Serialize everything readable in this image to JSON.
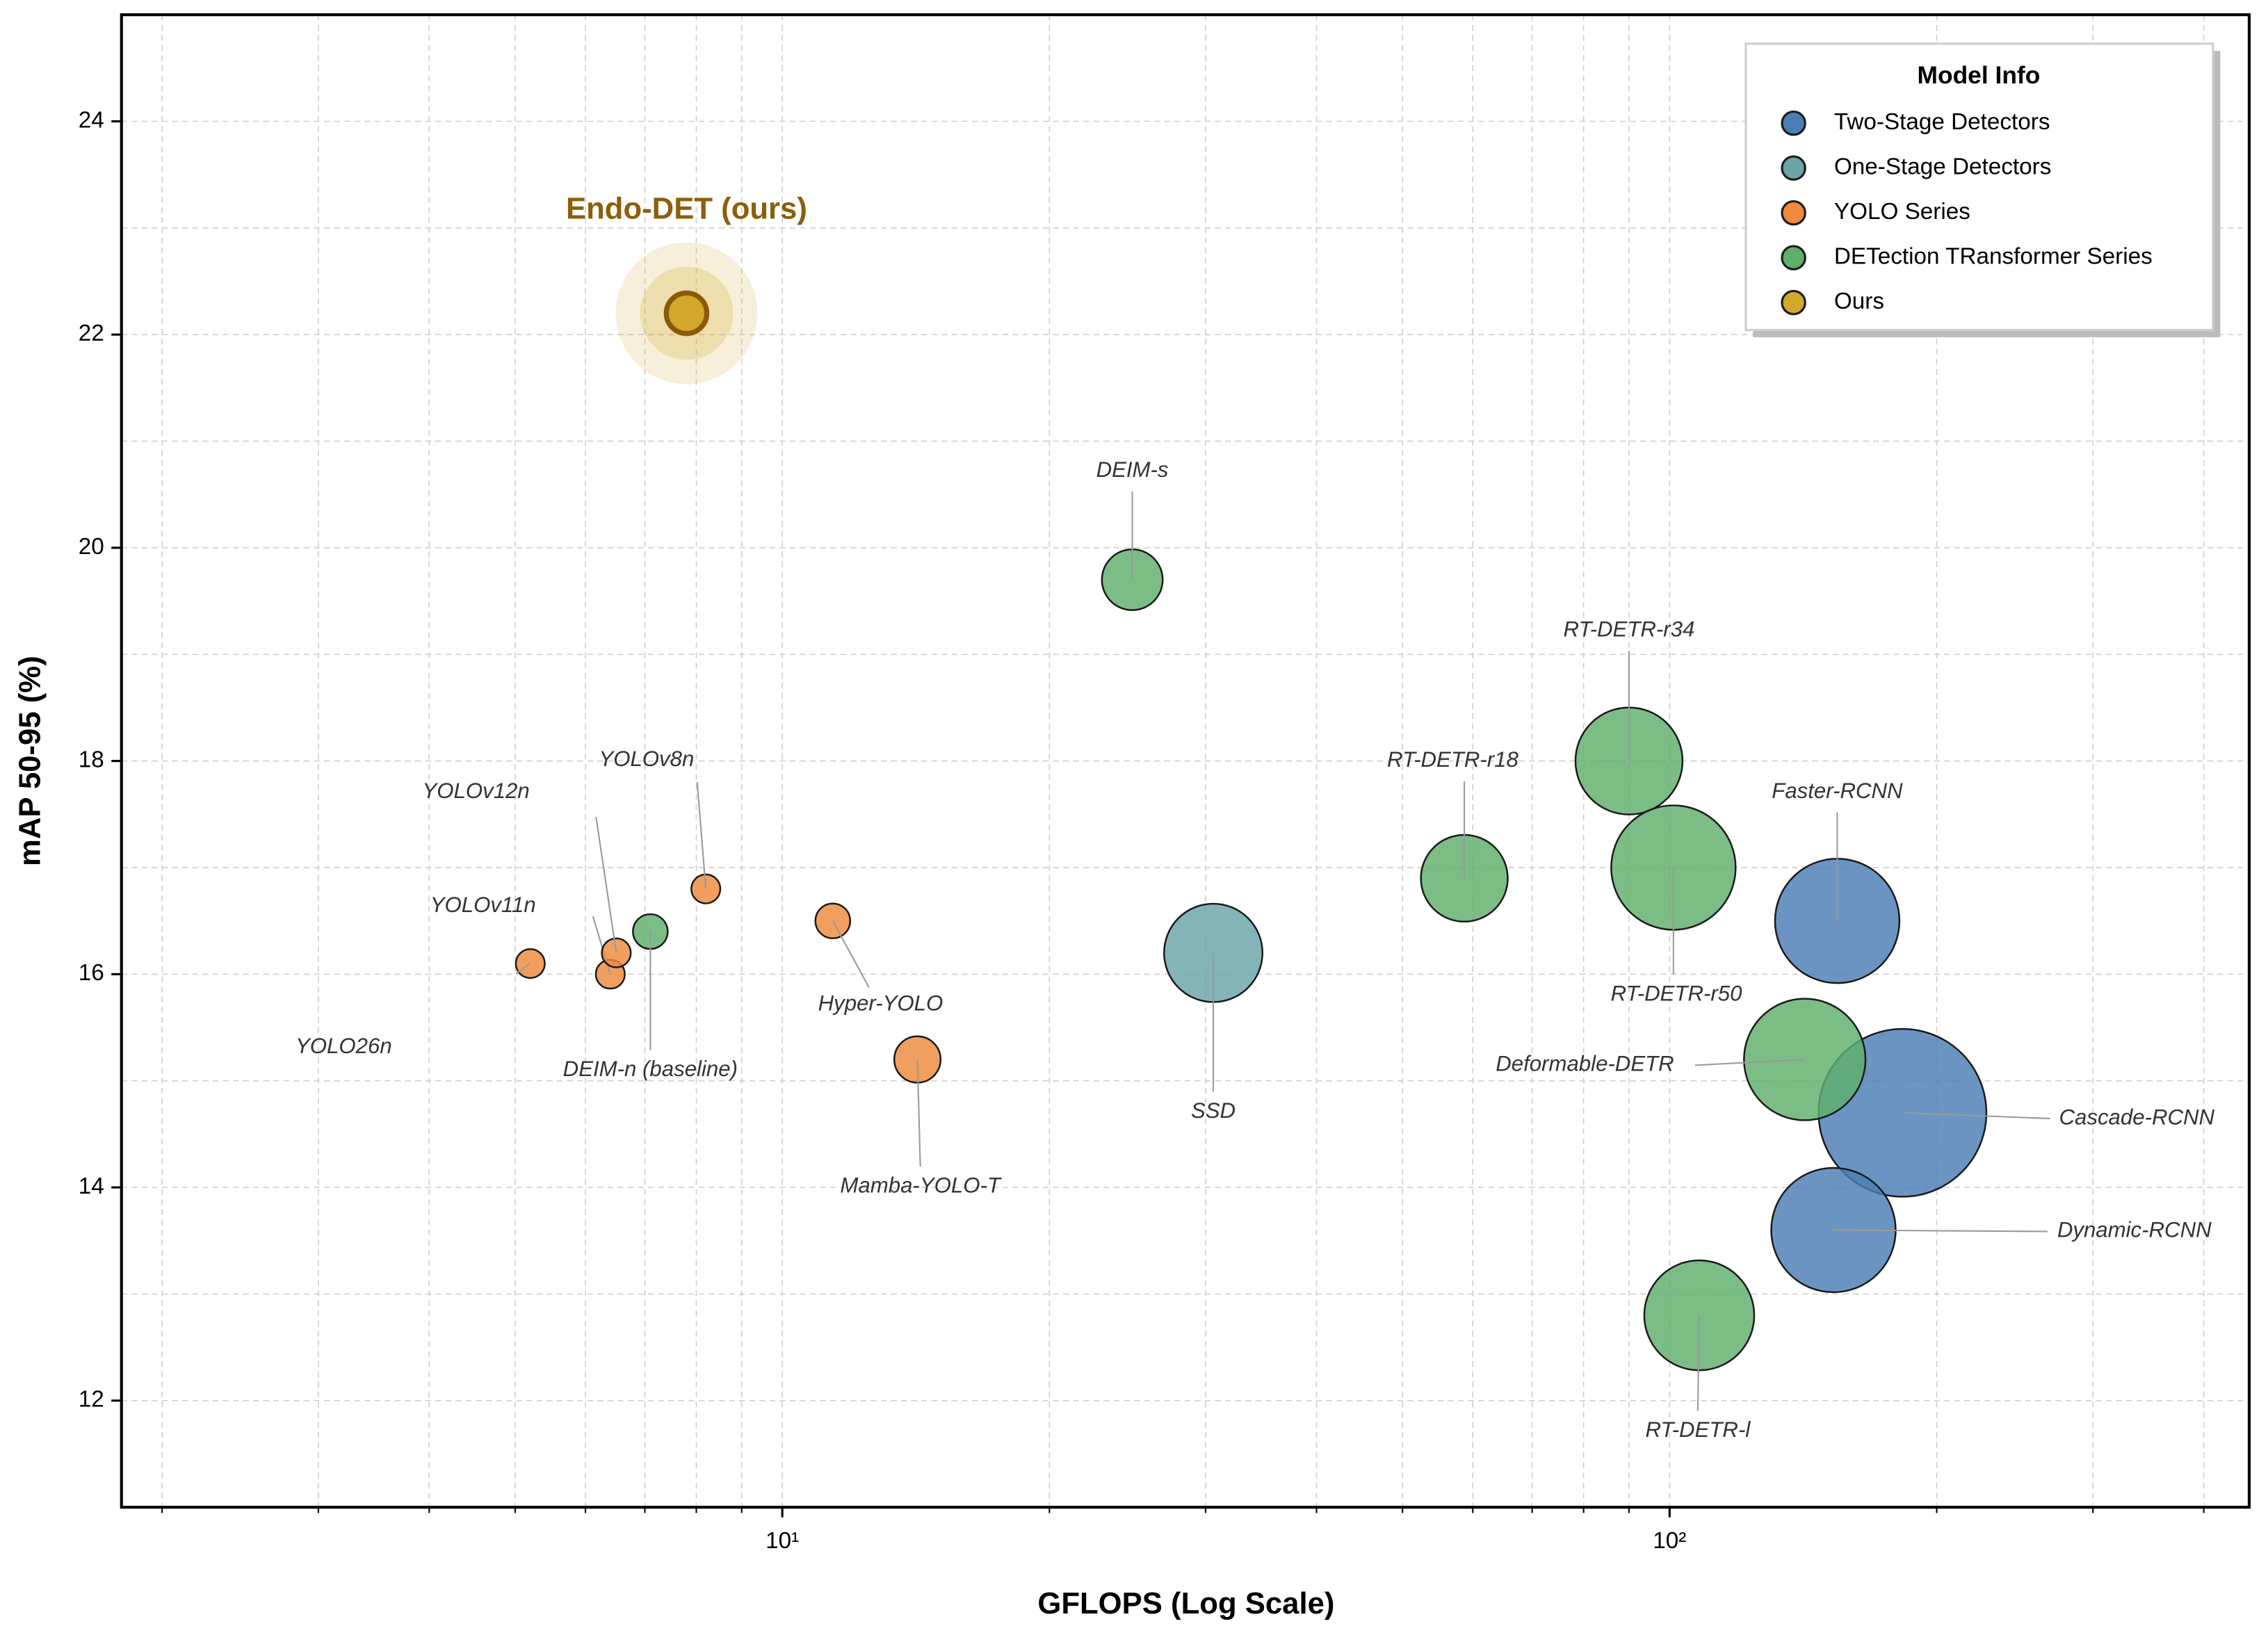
{
  "chart_data": {
    "type": "bubble",
    "xlabel": "GFLOPS (Log Scale)",
    "ylabel": "mAP 50-95 (%)",
    "xscale": "log",
    "xlim": [
      1.8,
      450
    ],
    "ylim": [
      11,
      25
    ],
    "xticks": [
      {
        "value": 10,
        "label": "10¹"
      },
      {
        "value": 100,
        "label": "10²"
      }
    ],
    "xminorticks": [
      2,
      3,
      4,
      5,
      6,
      7,
      8,
      9,
      20,
      30,
      40,
      50,
      60,
      70,
      80,
      90,
      200,
      300,
      400
    ],
    "yticks": [
      12,
      14,
      16,
      18,
      20,
      22,
      24
    ],
    "yminorticks": [
      13,
      15,
      17,
      19,
      21,
      23
    ],
    "grid": true,
    "legend_title": "Model Info",
    "legend_position": "upper right",
    "series": [
      {
        "name": "Two-Stage Detectors",
        "color": "#4a7db5",
        "labels": [
          "Faster-RCNN",
          "Cascade-RCNN",
          "Dynamic-RCNN"
        ],
        "x": [
          154.5,
          183,
          153
        ],
        "y": [
          16.5,
          14.7,
          13.6
        ],
        "sizes": [
          43,
          58,
          43
        ]
      },
      {
        "name": "One-Stage Detectors",
        "color": "#6aa3a8",
        "labels": [
          "SSD"
        ],
        "x": [
          30.6
        ],
        "y": [
          16.2
        ],
        "sizes": [
          34
        ]
      },
      {
        "name": "YOLO Series",
        "color": "#ee8a3c",
        "labels": [
          "YOLO26n",
          "YOLOv11n",
          "YOLOv12n",
          "YOLOv8n",
          "Hyper-YOLO",
          "Mamba-YOLO-T"
        ],
        "x": [
          5.2,
          6.4,
          6.5,
          8.2,
          11.4,
          14.2
        ],
        "y": [
          16.1,
          16.0,
          16.2,
          16.8,
          16.5,
          15.2
        ],
        "sizes": [
          10,
          10,
          10,
          10,
          12,
          16
        ]
      },
      {
        "name": "DETection TRansformer Series",
        "color": "#5fae6b",
        "labels": [
          "DEIM-n (baseline)",
          "DEIM-s",
          "RT-DETR-r18",
          "RT-DETR-r34",
          "RT-DETR-r50",
          "Deformable-DETR",
          "RT-DETR-l"
        ],
        "x": [
          7.1,
          24.8,
          58.7,
          90,
          101,
          142,
          108
        ],
        "y": [
          16.4,
          19.7,
          16.9,
          18.0,
          17.0,
          15.2,
          12.8
        ],
        "sizes": [
          12,
          21,
          30,
          37,
          43,
          42,
          38
        ]
      },
      {
        "name": "Ours",
        "color": "#d4a82a",
        "labels": [
          "Endo-DET (ours)"
        ],
        "x": [
          7.8
        ],
        "y": [
          22.2
        ],
        "sizes": [
          14
        ]
      }
    ]
  }
}
